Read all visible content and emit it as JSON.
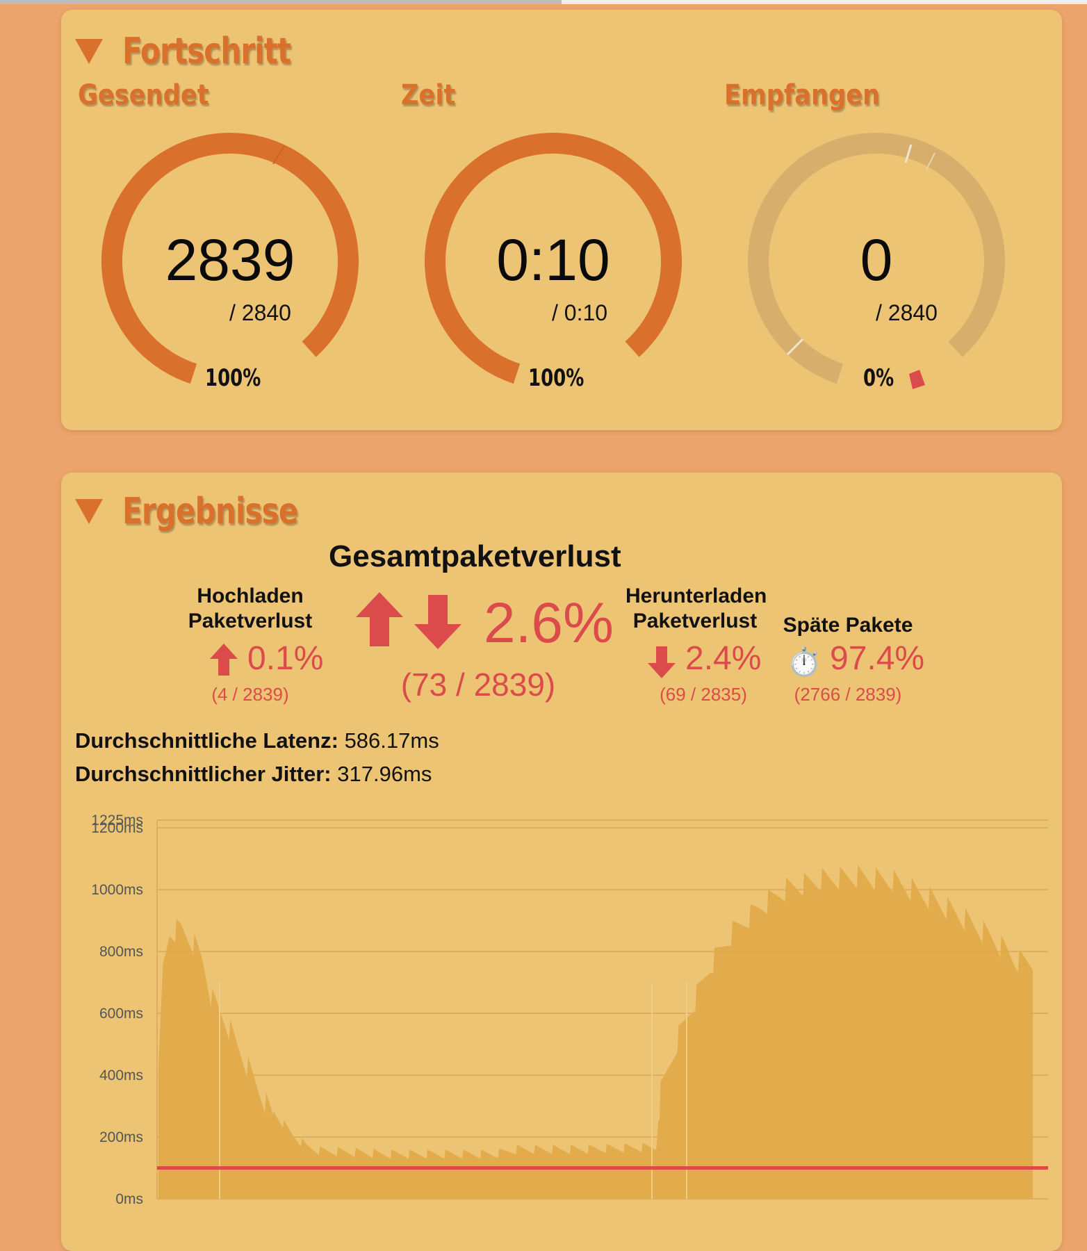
{
  "progress": {
    "title": "Fortschritt",
    "gauges": [
      {
        "label": "Gesendet",
        "value": "2839",
        "total": "/ 2840",
        "percent": "100%",
        "fill": 0.9996
      },
      {
        "label": "Zeit",
        "value": "0:10",
        "total": "/ 0:10",
        "percent": "100%",
        "fill": 1.0
      },
      {
        "label": "Empfangen",
        "value": "0",
        "total": "/ 2840",
        "percent": "0%",
        "fill": 0.0
      }
    ]
  },
  "results": {
    "title": "Ergebnisse",
    "total_loss": {
      "heading": "Gesamtpaketverlust",
      "value": "2.6%",
      "detail": "(73 / 2839)"
    },
    "upload_loss": {
      "heading_line1": "Hochladen",
      "heading_line2": "Paketverlust",
      "value": "0.1%",
      "detail": "(4 / 2839)"
    },
    "download_loss": {
      "heading_line1": "Herunterladen",
      "heading_line2": "Paketverlust",
      "value": "2.4%",
      "detail": "(69 / 2835)"
    },
    "late_packets": {
      "heading": "Späte Pakete",
      "icon": "⏱️",
      "value": "97.4%",
      "detail": "(2766 / 2839)"
    },
    "avg_latency": {
      "label": "Durchschnittliche Latenz:",
      "value": "586.17ms"
    },
    "avg_jitter": {
      "label": "Durchschnittlicher Jitter:",
      "value": "317.96ms"
    }
  },
  "colors": {
    "accent": "#d9702c",
    "loss_red": "#dc4b4b",
    "card": "#edc473",
    "page": "#eba46c",
    "area": "#e2aa4a"
  },
  "chart_data": {
    "type": "area",
    "ylim": [
      0,
      1225
    ],
    "yticks": [
      "0ms",
      "200ms",
      "400ms",
      "600ms",
      "800ms",
      "1000ms",
      "1200ms",
      "1225ms"
    ],
    "threshold_ms": 100,
    "envelope_ms": [
      [
        0,
        430
      ],
      [
        2,
        780
      ],
      [
        5,
        900
      ],
      [
        10,
        910
      ],
      [
        15,
        870
      ],
      [
        19,
        820
      ],
      [
        20,
        800
      ],
      [
        24,
        680
      ],
      [
        26,
        660
      ],
      [
        30,
        610
      ],
      [
        36,
        520
      ],
      [
        44,
        400
      ],
      [
        52,
        290
      ],
      [
        60,
        220
      ],
      [
        66,
        185
      ],
      [
        72,
        170
      ],
      [
        90,
        165
      ],
      [
        100,
        160
      ],
      [
        110,
        160
      ],
      [
        150,
        160
      ],
      [
        160,
        175
      ],
      [
        190,
        175
      ],
      [
        200,
        178
      ],
      [
        210,
        180
      ],
      [
        222,
        182
      ],
      [
        224,
        380
      ],
      [
        228,
        470
      ],
      [
        232,
        560
      ],
      [
        238,
        660
      ],
      [
        246,
        790
      ],
      [
        256,
        900
      ],
      [
        268,
        980
      ],
      [
        280,
        1040
      ],
      [
        296,
        1070
      ],
      [
        312,
        1080
      ],
      [
        328,
        1065
      ],
      [
        344,
        1010
      ],
      [
        356,
        960
      ],
      [
        364,
        920
      ],
      [
        372,
        880
      ],
      [
        378,
        840
      ],
      [
        382,
        810
      ],
      [
        390,
        800
      ]
    ],
    "sawtooth_depth_ms": 80
  }
}
